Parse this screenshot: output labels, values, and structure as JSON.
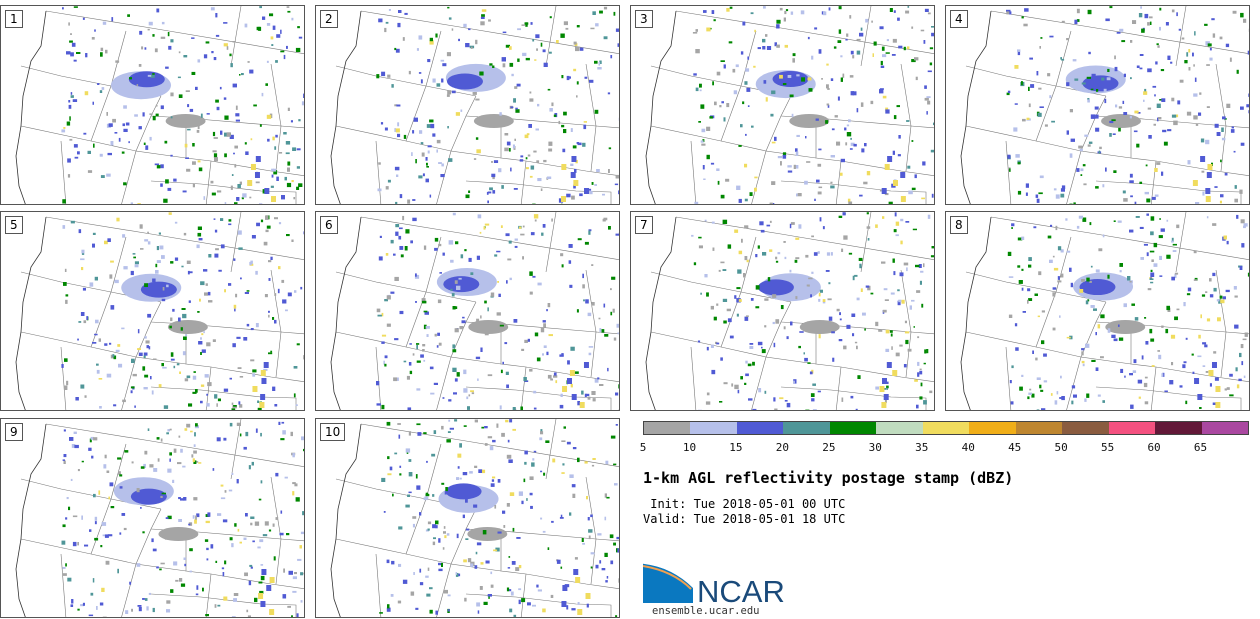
{
  "panels": [
    "1",
    "2",
    "3",
    "4",
    "5",
    "6",
    "7",
    "8",
    "9",
    "10"
  ],
  "colorbar": {
    "ticks": [
      "5",
      "10",
      "15",
      "20",
      "25",
      "30",
      "35",
      "40",
      "45",
      "50",
      "55",
      "60",
      "65"
    ],
    "colors": [
      "#a5a5a5",
      "#b6c0ea",
      "#505ad4",
      "#4f9698",
      "#008700",
      "#c0dcbf",
      "#f0dc5e",
      "#f0ae18",
      "#be8630",
      "#8a5c40",
      "#f45180",
      "#621838",
      "#aa48a0"
    ]
  },
  "title": "1-km AGL reflectivity postage stamp (dBZ)",
  "init": " Init: Tue 2018-05-01 00 UTC",
  "valid": "Valid: Tue 2018-05-01 18 UTC",
  "logo": {
    "text": "NCAR",
    "color": "#1a4a7a",
    "accent": "#0a78c0"
  },
  "url": "ensemble.ucar.edu"
}
